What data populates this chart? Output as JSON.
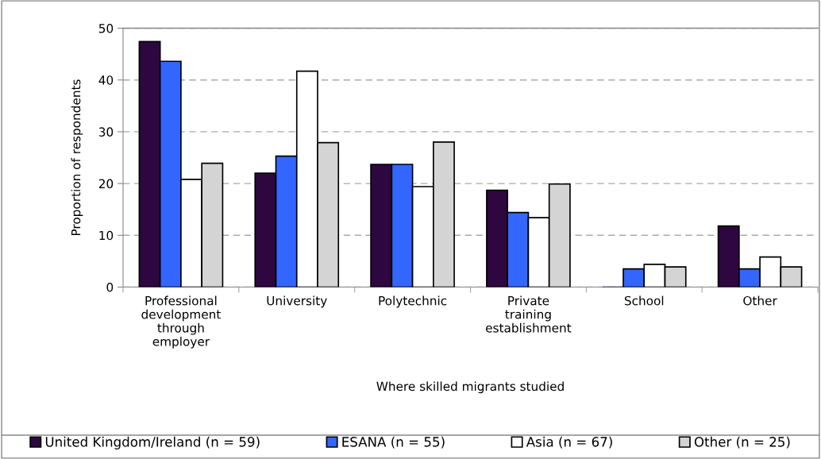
{
  "chart_data": {
    "type": "bar",
    "xlabel": "Where skilled migrants studied",
    "ylabel": "Proportion of respondents",
    "categories": [
      "Professional\ndevelopment\nthrough\nemployer",
      "University",
      "Polytechnic",
      "Private\ntraining\nestablishment",
      "School",
      "Other"
    ],
    "series": [
      {
        "name": "United Kingdom/Ireland (n = 59)",
        "color": "#2e0640",
        "values": [
          47.4,
          22.0,
          23.7,
          18.7,
          0,
          11.8
        ]
      },
      {
        "name": "ESANA (n = 55)",
        "color": "#3366ff",
        "values": [
          43.6,
          25.3,
          23.7,
          14.4,
          3.5,
          3.5
        ]
      },
      {
        "name": "Asia (n = 67)",
        "color": "#ffffff",
        "values": [
          20.8,
          41.7,
          19.4,
          13.4,
          4.4,
          5.8
        ]
      },
      {
        "name": "Other (n = 25)",
        "color": "#d4d4d4",
        "values": [
          23.9,
          27.9,
          28.0,
          19.9,
          3.9,
          3.9
        ]
      }
    ],
    "ylim": [
      0,
      50
    ],
    "yticks": [
      0,
      10,
      20,
      30,
      40,
      50
    ],
    "grid": "y",
    "legend": "bottom"
  }
}
